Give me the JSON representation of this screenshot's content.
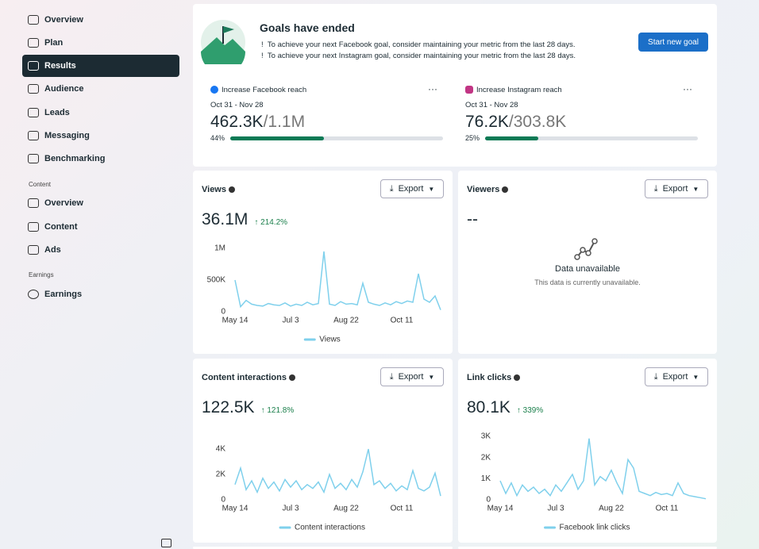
{
  "sidebar": {
    "items": [
      "Overview",
      "Plan",
      "Results",
      "Audience",
      "Leads",
      "Messaging",
      "Benchmarking"
    ],
    "sections": [
      {
        "heading": "Content",
        "items": [
          "Overview",
          "Content",
          "Ads"
        ]
      },
      {
        "heading": "Earnings",
        "items": [
          "Earnings"
        ]
      }
    ]
  },
  "goals": {
    "title": "Goals have ended",
    "notes": [
      "To achieve your next Facebook goal, consider maintaining your metric from the last 28 days.",
      "To achieve your next Instagram goal, consider maintaining your metric from the last 28 days."
    ],
    "button": "Start new goal",
    "items": [
      {
        "name": "Increase Facebook reach",
        "dates": "Oct 31 - Nov 28",
        "current": "462.3K",
        "target": "/1.1M",
        "progress": {
          "value": 44,
          "label": "44%"
        }
      },
      {
        "name": "Increase Instagram reach",
        "dates": "Oct 31 - Nov 28",
        "current": "76.2K",
        "target": "/303.8K",
        "progress": {
          "value": 25,
          "label": "25%"
        }
      }
    ]
  },
  "cards": [
    {
      "title": "Views",
      "metric": "36.1M",
      "change": "214.2%",
      "export": "Export",
      "chart_data": {
        "type": "line",
        "xlim": [
          0,
          37
        ],
        "xticks": [
          {
            "value": 0,
            "label": "May 14"
          },
          {
            "value": 10,
            "label": "Jul 3"
          },
          {
            "value": 20,
            "label": "Aug 22"
          },
          {
            "value": 30,
            "label": "Oct 11"
          }
        ],
        "ylim": [
          0,
          1000000
        ],
        "yticks": [
          0,
          {
            "value": 500000,
            "label": "500K"
          },
          {
            "value": 1000000,
            "label": "1M"
          }
        ],
        "grid": false,
        "series": [
          {
            "name": "Views",
            "color": "#7fd0ec",
            "values": [
              500000,
              80000,
              180000,
              120000,
              100000,
              90000,
              130000,
              110000,
              100000,
              140000,
              90000,
              120000,
              100000,
              150000,
              110000,
              130000,
              950000,
              120000,
              100000,
              160000,
              120000,
              130000,
              110000,
              450000,
              150000,
              120000,
              100000,
              140000,
              110000,
              160000,
              130000,
              170000,
              150000,
              600000,
              200000,
              150000,
              250000,
              30000
            ]
          }
        ]
      }
    },
    {
      "title": "Viewers",
      "metric": "--",
      "export": "Export",
      "empty_title": "Data unavailable",
      "empty_text": "This data is currently unavailable."
    },
    {
      "title": "Content interactions",
      "metric": "122.5K",
      "change": "121.8%",
      "export": "Export",
      "chart_data": {
        "type": "line",
        "xlim": [
          0,
          37
        ],
        "xticks": [
          {
            "value": 0,
            "label": "May 14"
          },
          {
            "value": 10,
            "label": "Jul 3"
          },
          {
            "value": 20,
            "label": "Aug 22"
          },
          {
            "value": 30,
            "label": "Oct 11"
          }
        ],
        "ylim": [
          0,
          5000
        ],
        "yticks": [
          0,
          {
            "value": 2000,
            "label": "2K"
          },
          {
            "value": 4000,
            "label": "4K"
          }
        ],
        "grid": false,
        "series": [
          {
            "name": "Content interactions",
            "color": "#7fd0ec",
            "values": [
              1200,
              2500,
              800,
              1500,
              600,
              1700,
              900,
              1400,
              700,
              1600,
              1000,
              1500,
              800,
              1200,
              900,
              1400,
              600,
              2000,
              900,
              1300,
              800,
              1600,
              1000,
              2200,
              4000,
              1200,
              1500,
              900,
              1300,
              700,
              1100,
              800,
              2300,
              900,
              700,
              1000,
              2100,
              300
            ]
          }
        ]
      }
    },
    {
      "title": "Link clicks",
      "metric": "80.1K",
      "change": "339%",
      "export": "Export",
      "chart_data": {
        "type": "line",
        "xlim": [
          0,
          37
        ],
        "xticks": [
          {
            "value": 0,
            "label": "May 14"
          },
          {
            "value": 10,
            "label": "Jul 3"
          },
          {
            "value": 20,
            "label": "Aug 22"
          },
          {
            "value": 30,
            "label": "Oct 11"
          }
        ],
        "ylim": [
          0,
          3000
        ],
        "yticks": [
          0,
          {
            "value": 1000,
            "label": "1K"
          },
          {
            "value": 2000,
            "label": "2K"
          },
          {
            "value": 3000,
            "label": "3K"
          }
        ],
        "grid": false,
        "series": [
          {
            "name": "Facebook link clicks",
            "color": "#7fd0ec",
            "values": [
              900,
              300,
              800,
              200,
              700,
              400,
              600,
              300,
              500,
              200,
              700,
              400,
              800,
              1200,
              500,
              900,
              2900,
              700,
              1100,
              900,
              1400,
              800,
              300,
              1900,
              1500,
              400,
              300,
              200,
              350,
              250,
              300,
              200,
              800,
              300,
              200,
              150,
              100,
              50
            ]
          }
        ]
      }
    }
  ]
}
